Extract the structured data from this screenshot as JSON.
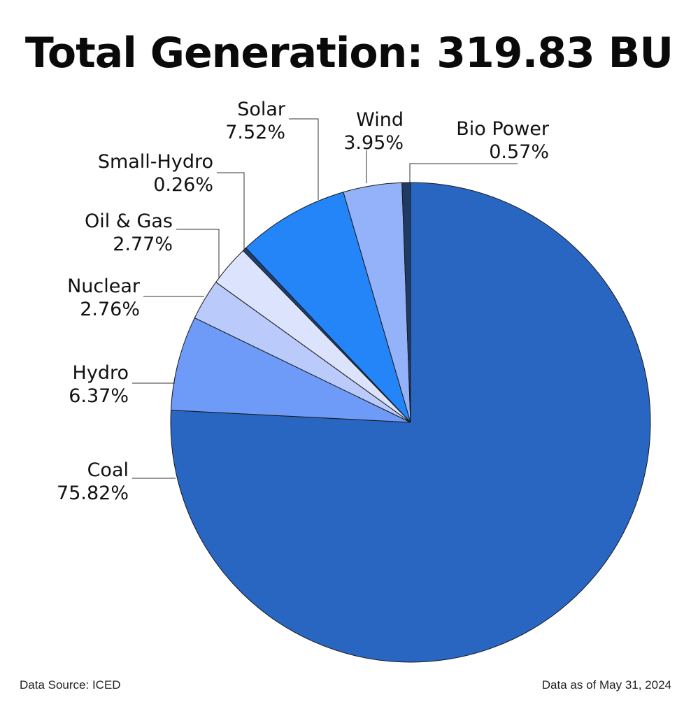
{
  "chart_data": {
    "type": "pie",
    "title": "Total Generation: 319.83 BU",
    "start_angle_deg": 0,
    "direction": "clockwise",
    "slices": [
      {
        "label": "Coal",
        "value_label": "75.82%",
        "value": 75.82,
        "color": "#2866C2"
      },
      {
        "label": "Hydro",
        "value_label": "6.37%",
        "value": 6.37,
        "color": "#6E9BF7"
      },
      {
        "label": "Nuclear",
        "value_label": "2.76%",
        "value": 2.76,
        "color": "#BACBFB"
      },
      {
        "label": "Oil & Gas",
        "value_label": "2.77%",
        "value": 2.77,
        "color": "#DCE3FC"
      },
      {
        "label": "Small-Hydro",
        "value_label": "0.26%",
        "value": 0.26,
        "color": "#1F3E73"
      },
      {
        "label": "Solar",
        "value_label": "7.52%",
        "value": 7.52,
        "color": "#2385F8"
      },
      {
        "label": "Wind",
        "value_label": "3.95%",
        "value": 3.95,
        "color": "#93B2FA"
      },
      {
        "label": "Bio Power",
        "value_label": "0.57%",
        "value": 0.57,
        "color": "#203A66"
      }
    ]
  },
  "footer": {
    "source": "Data Source: ICED",
    "date": "Data as of May 31, 2024"
  }
}
